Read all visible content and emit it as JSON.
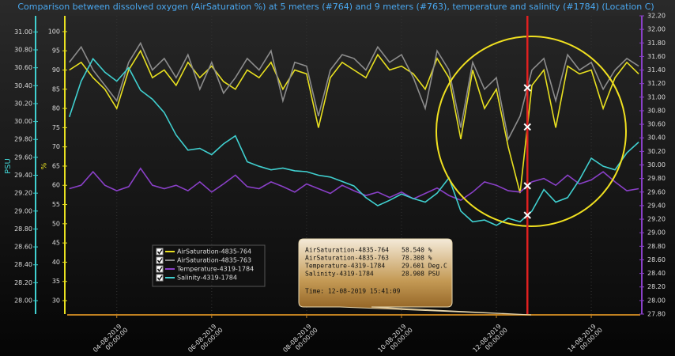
{
  "chart_data": {
    "type": "line",
    "title": "Comparison between dissolved oxygen (AirSaturation %) at 5 meters (#764) and 9 meters (#763), temperature and salinity (#1784) (Location C)",
    "y_label": "%",
    "y3_label": "PSU",
    "xlim": [
      "2019-08-02T22:55",
      "2019-08-15T00:45"
    ],
    "xticks": [
      {
        "value": "2019-08-04T00:00",
        "label": "04-08-2019 00:00:00"
      },
      {
        "value": "2019-08-06T00:00",
        "label": "06-08-2019 00:00:00"
      },
      {
        "value": "2019-08-08T00:00",
        "label": "08-08-2019 00:00:00"
      },
      {
        "value": "2019-08-10T00:00",
        "label": "10-08-2019 00:00:00"
      },
      {
        "value": "2019-08-12T00:00",
        "label": "12-08-2019 00:00:00"
      },
      {
        "value": "2019-08-14T00:00",
        "label": "14-08-2019 00:00:00"
      }
    ],
    "ylim": [
      26.5,
      104.1
    ],
    "yticks": [
      30,
      35,
      40,
      45,
      50,
      55,
      60,
      65,
      70,
      75,
      80,
      85,
      90,
      95,
      100
    ],
    "y2lim": [
      27.8,
      32.2
    ],
    "y2ticks": [
      {
        "value": 27.8,
        "label": "27.80"
      },
      {
        "value": 28,
        "label": "28.00"
      },
      {
        "value": 28.2,
        "label": "28.20"
      },
      {
        "value": 28.4,
        "label": "28.40"
      },
      {
        "value": 28.6,
        "label": "28.60"
      },
      {
        "value": 28.8,
        "label": "28.80"
      },
      {
        "value": 29,
        "label": "29.00"
      },
      {
        "value": 29.2,
        "label": "29.20"
      },
      {
        "value": 29.4,
        "label": "29.40"
      },
      {
        "value": 29.6,
        "label": "29.60"
      },
      {
        "value": 29.8,
        "label": "29.80"
      },
      {
        "value": 30,
        "label": "30.00"
      },
      {
        "value": 30.2,
        "label": "30.20"
      },
      {
        "value": 30.4,
        "label": "30.40"
      },
      {
        "value": 30.6,
        "label": "30.60"
      },
      {
        "value": 30.8,
        "label": "30.80"
      },
      {
        "value": 31,
        "label": "31.00"
      },
      {
        "value": 31.2,
        "label": "31.20"
      },
      {
        "value": 31.4,
        "label": "31.40"
      },
      {
        "value": 31.6,
        "label": "31.60"
      },
      {
        "value": 31.8,
        "label": "31.80"
      },
      {
        "value": 32,
        "label": "32.00"
      },
      {
        "value": 32.2,
        "label": "32.20"
      }
    ],
    "y3lim": [
      27.85,
      31.18
    ],
    "y3ticks": [
      {
        "value": 28,
        "label": "28.00"
      },
      {
        "value": 28.2,
        "label": "28.20"
      },
      {
        "value": 28.4,
        "label": "28.40"
      },
      {
        "value": 28.6,
        "label": "28.60"
      },
      {
        "value": 28.8,
        "label": "28.80"
      },
      {
        "value": 29,
        "label": "29.00"
      },
      {
        "value": 29.2,
        "label": "29.20"
      },
      {
        "value": 29.4,
        "label": "29.40"
      },
      {
        "value": 29.6,
        "label": "29.60"
      },
      {
        "value": 29.8,
        "label": "29.80"
      },
      {
        "value": 30,
        "label": "30.00"
      },
      {
        "value": 30.2,
        "label": "30.20"
      },
      {
        "value": 30.4,
        "label": "30.40"
      },
      {
        "value": 30.6,
        "label": "30.60"
      },
      {
        "value": 30.8,
        "label": "30.80"
      },
      {
        "value": 31,
        "label": "31.00"
      }
    ],
    "x": [
      "2019-08-03T00:00",
      "2019-08-03T06:00",
      "2019-08-03T12:00",
      "2019-08-03T18:00",
      "2019-08-04T00:00",
      "2019-08-04T06:00",
      "2019-08-04T12:00",
      "2019-08-04T18:00",
      "2019-08-05T00:00",
      "2019-08-05T06:00",
      "2019-08-05T12:00",
      "2019-08-05T18:00",
      "2019-08-06T00:00",
      "2019-08-06T06:00",
      "2019-08-06T12:00",
      "2019-08-06T18:00",
      "2019-08-07T00:00",
      "2019-08-07T06:00",
      "2019-08-07T12:00",
      "2019-08-07T18:00",
      "2019-08-08T00:00",
      "2019-08-08T06:00",
      "2019-08-08T12:00",
      "2019-08-08T18:00",
      "2019-08-09T00:00",
      "2019-08-09T06:00",
      "2019-08-09T12:00",
      "2019-08-09T18:00",
      "2019-08-10T00:00",
      "2019-08-10T06:00",
      "2019-08-10T12:00",
      "2019-08-10T18:00",
      "2019-08-11T00:00",
      "2019-08-11T06:00",
      "2019-08-11T12:00",
      "2019-08-11T18:00",
      "2019-08-12T00:00",
      "2019-08-12T06:00",
      "2019-08-12T12:00",
      "2019-08-12T18:00",
      "2019-08-13T00:00",
      "2019-08-13T06:00",
      "2019-08-13T12:00",
      "2019-08-13T18:00",
      "2019-08-14T00:00",
      "2019-08-14T06:00",
      "2019-08-14T12:00",
      "2019-08-14T18:00",
      "2019-08-15T00:00"
    ],
    "series": [
      {
        "name": "AirSaturation-4835-764",
        "color": "#e8e020",
        "axis": "y",
        "values": [
          90,
          92,
          88,
          85,
          80,
          90,
          95,
          88,
          90,
          86,
          92,
          88,
          91,
          87,
          85,
          90,
          88,
          92,
          85,
          90,
          89,
          75,
          88,
          92,
          90,
          88,
          94,
          90,
          91,
          89,
          85,
          93,
          88,
          72,
          90,
          80,
          85,
          70,
          58,
          86,
          90,
          75,
          91,
          89,
          90,
          80,
          88,
          92,
          89
        ]
      },
      {
        "name": "AirSaturation-4835-763",
        "color": "#8c8c8c",
        "axis": "y",
        "values": [
          92,
          96,
          90,
          86,
          82,
          92,
          97,
          90,
          93,
          88,
          94,
          85,
          92,
          84,
          88,
          93,
          90,
          95,
          82,
          92,
          91,
          78,
          90,
          94,
          93,
          90,
          96,
          92,
          94,
          88,
          80,
          95,
          90,
          75,
          92,
          85,
          88,
          72,
          78,
          90,
          93,
          82,
          94,
          90,
          92,
          85,
          90,
          93,
          91
        ]
      },
      {
        "name": "Temperature-4319-1784",
        "color": "#8a40c8",
        "axis": "y2",
        "values": [
          29.65,
          29.7,
          29.9,
          29.7,
          29.62,
          29.68,
          29.95,
          29.7,
          29.65,
          29.7,
          29.62,
          29.75,
          29.6,
          29.72,
          29.85,
          29.68,
          29.65,
          29.75,
          29.68,
          29.6,
          29.72,
          29.65,
          29.58,
          29.7,
          29.62,
          29.55,
          29.6,
          29.52,
          29.6,
          29.5,
          29.58,
          29.66,
          29.55,
          29.48,
          29.6,
          29.75,
          29.7,
          29.62,
          29.6,
          29.75,
          29.8,
          29.7,
          29.85,
          29.72,
          29.78,
          29.9,
          29.75,
          29.62,
          29.65
        ]
      },
      {
        "name": "Salinity-4319-1784",
        "color": "#40d0d0",
        "axis": "y3",
        "values": [
          30.05,
          30.45,
          30.7,
          30.55,
          30.45,
          30.6,
          30.35,
          30.25,
          30.1,
          29.85,
          29.68,
          29.7,
          29.63,
          29.75,
          29.84,
          29.55,
          29.5,
          29.46,
          29.48,
          29.45,
          29.44,
          29.4,
          29.38,
          29.33,
          29.28,
          29.15,
          29.06,
          29.12,
          29.19,
          29.14,
          29.1,
          29.2,
          29.37,
          29.0,
          28.88,
          28.9,
          28.84,
          28.92,
          28.88,
          29.0,
          29.24,
          29.1,
          29.15,
          29.35,
          29.59,
          29.5,
          29.46,
          29.65,
          29.77
        ]
      }
    ],
    "cursor": "2019-08-12T15:41:09",
    "tooltip": {
      "rows": [
        {
          "name": "AirSaturation-4835-764",
          "value": "58.540 %"
        },
        {
          "name": "AirSaturation-4835-763",
          "value": "78.308 %"
        },
        {
          "name": "Temperature-4319-1784",
          "value": "29.601 Deg.C"
        },
        {
          "name": "Salinity-4319-1784",
          "value": "28.908 PSU"
        }
      ],
      "time": "Time: 12-08-2019 15:41:09"
    }
  }
}
